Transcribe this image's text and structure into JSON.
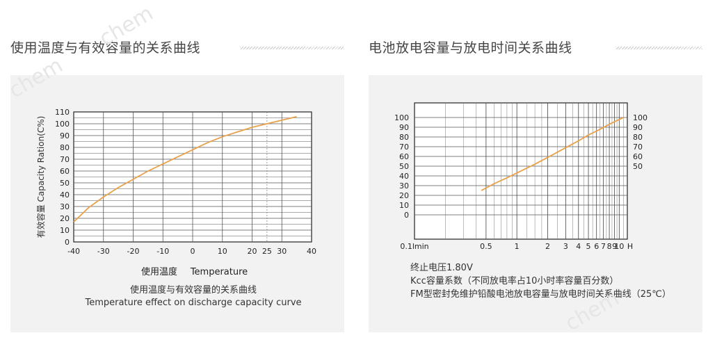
{
  "left": {
    "section_title": "使用温度与有效容量的关系曲线",
    "chart_data": {
      "type": "line",
      "ylabel": "有效容量 Capacity Ration(C%)",
      "xlabel_cn": "使用温度",
      "xlabel_en": "Temperature",
      "caption_cn": "使用温度与有效容量的关系曲线",
      "caption_en": "Temperature effect on discharge capacity curve",
      "x_ticks": [
        -40,
        -30,
        -20,
        -10,
        0,
        10,
        20,
        25,
        30,
        40
      ],
      "y_ticks": [
        0,
        10,
        20,
        30,
        40,
        50,
        60,
        70,
        80,
        90,
        100,
        110
      ],
      "xlim": [
        -40,
        40
      ],
      "ylim": [
        0,
        110
      ],
      "reference_line_x": 25,
      "grid": true,
      "series": [
        {
          "color": "#e8a14a",
          "x": [
            -40,
            -35,
            -30,
            -25,
            -20,
            -15,
            -10,
            -5,
            0,
            5,
            10,
            15,
            20,
            25,
            30,
            35
          ],
          "y": [
            17,
            29,
            38,
            46,
            53,
            60,
            66,
            72,
            78,
            84,
            89,
            93,
            97,
            100,
            103,
            106
          ]
        }
      ]
    }
  },
  "right": {
    "section_title": "电池放电容量与放电时间关系曲线",
    "chart_data": {
      "type": "line",
      "x_scale": "log",
      "x_ticks": [
        {
          "value": 0.1,
          "label": "0.1lmin"
        },
        {
          "value": 0.5,
          "label": "0.5"
        },
        {
          "value": 1,
          "label": "1"
        },
        {
          "value": 2,
          "label": "2"
        },
        {
          "value": 3,
          "label": "3"
        },
        {
          "value": 4,
          "label": "4"
        },
        {
          "value": 5,
          "label": "5"
        },
        {
          "value": 6,
          "label": "6"
        },
        {
          "value": 7,
          "label": "7"
        },
        {
          "value": 8,
          "label": "8"
        },
        {
          "value": 9,
          "label": "9"
        },
        {
          "value": 10,
          "label": "10"
        },
        {
          "value": 12,
          "label": "H"
        }
      ],
      "x_minor_grid": [
        0.2,
        0.3,
        0.4,
        0.6,
        0.7,
        0.8,
        0.9,
        1.25,
        1.5,
        1.75,
        2.5,
        3.5,
        4.5,
        5.5,
        6.5,
        7.5,
        8.5,
        9.5,
        11
      ],
      "xlim": [
        0.1,
        12
      ],
      "left_y_ticks": [
        0,
        10,
        20,
        30,
        40,
        50,
        60,
        70,
        80,
        90,
        100
      ],
      "right_y_ticks": [
        50,
        60,
        70,
        80,
        90,
        100
      ],
      "ylim": [
        -25,
        115
      ],
      "grid": true,
      "series": [
        {
          "color": "#e8a14a",
          "x": [
            0.45,
            0.6,
            0.8,
            1,
            1.5,
            2,
            3,
            4,
            5,
            6,
            8,
            10,
            11
          ],
          "y": [
            25,
            32,
            38,
            43,
            52,
            59,
            69,
            76,
            82,
            86,
            93,
            98,
            100
          ]
        }
      ],
      "notes": [
        "终止电压1.80V",
        "Kcc容量系数（不同放电率占10小时率容量百分数）",
        "FM型密封免维护铅酸电池放电容量与放电时间关系曲线（25℃）"
      ]
    }
  },
  "watermarks": [
    "chem",
    "chem",
    "chem"
  ]
}
